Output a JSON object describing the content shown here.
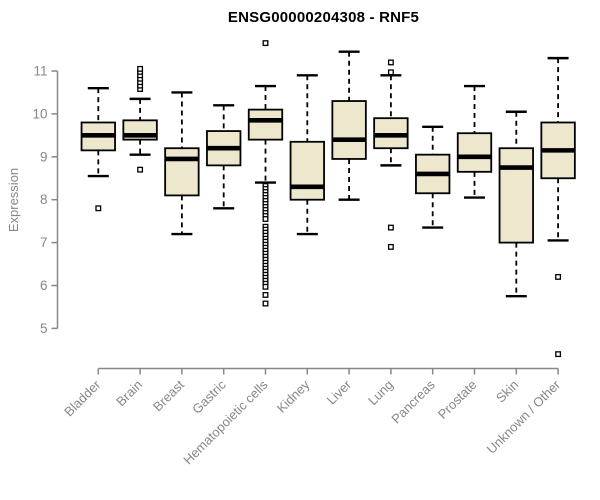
{
  "title": "ENSG00000204308 - RNF5",
  "colors": {
    "box_fill": "#EDE7CD",
    "box_border": "#000000",
    "median": "#000000",
    "whisker": "#000000",
    "outlier_stroke": "#000000",
    "outlier_fill": "#ffffff",
    "axis": "#878787",
    "tick_label": "#878787",
    "title_color": "#000000",
    "background": "#ffffff"
  },
  "chart_data": {
    "type": "boxplot",
    "title": "ENSG00000204308 - RNF5",
    "xlabel": "",
    "ylabel": "Expression",
    "ylim": [
      4.2,
      11.8
    ],
    "yticks": [
      5,
      6,
      7,
      8,
      9,
      10,
      11
    ],
    "grid": false,
    "legend": "none",
    "categories": [
      "Bladder",
      "Brain",
      "Breast",
      "Gastric",
      "Hematopoietic cells",
      "Kidney",
      "Liver",
      "Lung",
      "Pancreas",
      "Prostate",
      "Skin",
      "Unknown / Other"
    ],
    "series": [
      {
        "name": "Bladder",
        "whisker_low": 8.55,
        "q1": 9.15,
        "median": 9.5,
        "q3": 9.8,
        "whisker_high": 10.6,
        "outliers": [
          7.8
        ]
      },
      {
        "name": "Brain",
        "whisker_low": 9.05,
        "q1": 9.4,
        "median": 9.5,
        "q3": 9.85,
        "whisker_high": 10.35,
        "outliers": [
          8.7,
          10.58,
          10.66,
          10.74,
          10.82,
          10.9,
          10.98,
          11.05
        ]
      },
      {
        "name": "Breast",
        "whisker_low": 7.2,
        "q1": 8.1,
        "median": 8.95,
        "q3": 9.2,
        "whisker_high": 10.5,
        "outliers": []
      },
      {
        "name": "Gastric",
        "whisker_low": 7.8,
        "q1": 8.8,
        "median": 9.2,
        "q3": 9.6,
        "whisker_high": 10.2,
        "outliers": []
      },
      {
        "name": "Hematopoietic cells",
        "whisker_low": 8.4,
        "q1": 9.4,
        "median": 9.85,
        "q3": 10.1,
        "whisker_high": 10.65,
        "outliers": [
          11.65,
          8.32,
          8.25,
          8.18,
          8.11,
          8.04,
          7.97,
          7.9,
          7.83,
          7.76,
          7.69,
          7.62,
          7.55,
          7.37,
          7.3,
          7.23,
          7.16,
          7.09,
          7.02,
          6.95,
          6.88,
          6.81,
          6.74,
          6.67,
          6.6,
          6.53,
          6.46,
          6.39,
          6.32,
          6.25,
          6.18,
          6.11,
          6.04,
          5.97,
          5.78,
          5.58
        ]
      },
      {
        "name": "Kidney",
        "whisker_low": 7.2,
        "q1": 8.0,
        "median": 8.3,
        "q3": 9.35,
        "whisker_high": 10.9,
        "outliers": []
      },
      {
        "name": "Liver",
        "whisker_low": 8.0,
        "q1": 8.95,
        "median": 9.4,
        "q3": 10.3,
        "whisker_high": 11.45,
        "outliers": []
      },
      {
        "name": "Lung",
        "whisker_low": 8.8,
        "q1": 9.2,
        "median": 9.5,
        "q3": 9.9,
        "whisker_high": 10.9,
        "outliers": [
          11.2,
          10.97,
          7.35,
          6.9
        ]
      },
      {
        "name": "Pancreas",
        "whisker_low": 7.35,
        "q1": 8.15,
        "median": 8.6,
        "q3": 9.05,
        "whisker_high": 9.7,
        "outliers": []
      },
      {
        "name": "Prostate",
        "whisker_low": 8.05,
        "q1": 8.65,
        "median": 9.0,
        "q3": 9.55,
        "whisker_high": 10.65,
        "outliers": []
      },
      {
        "name": "Skin",
        "whisker_low": 5.75,
        "q1": 7.0,
        "median": 8.75,
        "q3": 9.2,
        "whisker_high": 10.05,
        "outliers": []
      },
      {
        "name": "Unknown / Other",
        "whisker_low": 7.05,
        "q1": 8.5,
        "median": 9.15,
        "q3": 9.8,
        "whisker_high": 11.3,
        "outliers": [
          6.2,
          4.4
        ]
      }
    ]
  }
}
